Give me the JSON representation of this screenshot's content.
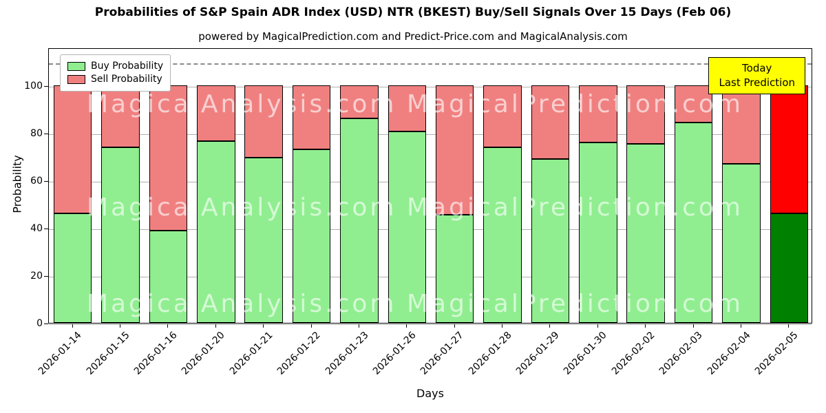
{
  "title": "Probabilities of S&P Spain ADR Index (USD) NTR (BKEST) Buy/Sell Signals Over 15 Days (Feb 06)",
  "subtitle": "powered by MagicalPrediction.com and Predict-Price.com and MagicalAnalysis.com",
  "legend": {
    "buy": "Buy Probability",
    "sell": "Sell Probability"
  },
  "annotation": {
    "line1": "Today",
    "line2": "Last Prediction"
  },
  "watermarks": {
    "left": "MagicalAnalysis.com",
    "right": "MagicalPrediction.com"
  },
  "colors": {
    "buy": "#90EE90",
    "sell": "#F08080",
    "buy_last": "#008000",
    "sell_last": "#FF0000",
    "annotation_bg": "#FFFF00",
    "grid": "#b0b0b0",
    "dashed": "#8a8a8a"
  },
  "chart_data": {
    "type": "bar",
    "stacked": true,
    "title": "Probabilities of S&P Spain ADR Index (USD) NTR (BKEST) Buy/Sell Signals Over 15 Days (Feb 06)",
    "xlabel": "Days",
    "ylabel": "Probability",
    "categories": [
      "2026-01-14",
      "2026-01-15",
      "2026-01-16",
      "2026-01-20",
      "2026-01-21",
      "2026-01-22",
      "2026-01-23",
      "2026-01-26",
      "2026-01-27",
      "2026-01-28",
      "2026-01-29",
      "2026-01-30",
      "2026-02-02",
      "2026-02-03",
      "2026-02-04",
      "2026-02-05"
    ],
    "series": [
      {
        "name": "Buy Probability",
        "values": [
          46,
          74,
          39,
          76.5,
          69.5,
          73,
          86,
          80.5,
          45.5,
          74,
          69,
          76,
          75.5,
          84.5,
          67,
          46
        ]
      },
      {
        "name": "Sell Probability",
        "values": [
          54,
          26,
          61,
          23.5,
          30.5,
          27,
          14,
          19.5,
          54.5,
          26,
          31,
          24,
          24.5,
          15.5,
          33,
          54
        ]
      }
    ],
    "bar_total": 100,
    "ylim": [
      0,
      116
    ],
    "yticks": [
      0,
      20,
      40,
      60,
      80,
      100
    ],
    "dashed_line_y": 110,
    "grid": true,
    "legend_position": "upper-left",
    "highlight_last_bar": true
  }
}
